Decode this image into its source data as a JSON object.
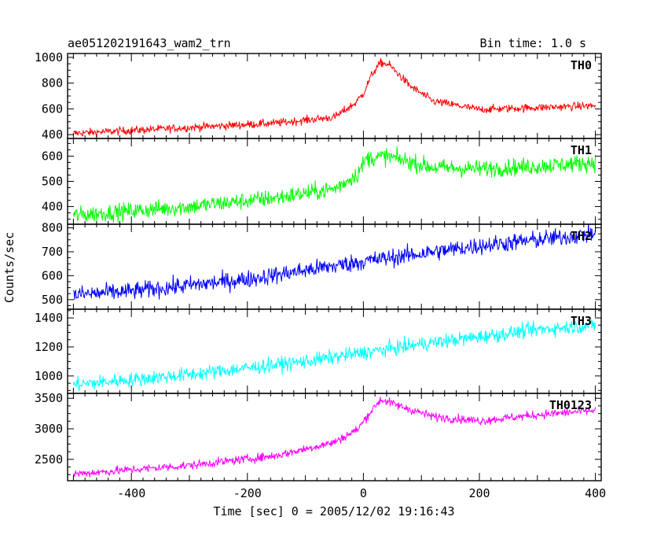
{
  "header": {
    "title": "ae051202191643_wam2_trn",
    "bin_time": "Bin time: 1.0 s"
  },
  "chart_data": {
    "type": "line",
    "title": "ae051202191643_wam2_trn",
    "xlabel": "Time [sec] 0 = 2005/12/02 19:16:43",
    "ylabel": "Counts/sec",
    "xlim": [
      -510,
      410
    ],
    "x_ticks": [
      -400,
      -200,
      0,
      200,
      400
    ],
    "grid": false,
    "panels": [
      {
        "name": "TH0",
        "color": "#ff0000",
        "ylim": [
          370,
          1030
        ],
        "y_ticks": [
          400,
          600,
          800,
          1000
        ],
        "keypoints": [
          [
            -500,
            410
          ],
          [
            -300,
            455
          ],
          [
            -150,
            490
          ],
          [
            -50,
            535
          ],
          [
            -15,
            640
          ],
          [
            0,
            720
          ],
          [
            15,
            870
          ],
          [
            30,
            960
          ],
          [
            45,
            940
          ],
          [
            80,
            780
          ],
          [
            120,
            660
          ],
          [
            200,
            595
          ],
          [
            300,
            610
          ],
          [
            400,
            625
          ]
        ],
        "noise": 22
      },
      {
        "name": "TH1",
        "color": "#00ff00",
        "ylim": [
          330,
          670
        ],
        "y_ticks": [
          400,
          500,
          600
        ],
        "keypoints": [
          [
            -500,
            365
          ],
          [
            -300,
            400
          ],
          [
            -150,
            435
          ],
          [
            -50,
            470
          ],
          [
            -10,
            530
          ],
          [
            5,
            590
          ],
          [
            40,
            600
          ],
          [
            120,
            555
          ],
          [
            200,
            550
          ],
          [
            300,
            560
          ],
          [
            400,
            575
          ]
        ],
        "noise": 24
      },
      {
        "name": "TH2",
        "color": "#0000ff",
        "ylim": [
          460,
          815
        ],
        "y_ticks": [
          500,
          600,
          700,
          800
        ],
        "keypoints": [
          [
            -500,
            520
          ],
          [
            -400,
            535
          ],
          [
            -200,
            585
          ],
          [
            0,
            660
          ],
          [
            200,
            725
          ],
          [
            400,
            775
          ]
        ],
        "noise": 26
      },
      {
        "name": "TH3",
        "color": "#00ffff",
        "ylim": [
          880,
          1460
        ],
        "y_ticks": [
          1000,
          1200,
          1400
        ],
        "keypoints": [
          [
            -500,
            940
          ],
          [
            -300,
            1010
          ],
          [
            -100,
            1100
          ],
          [
            100,
            1220
          ],
          [
            300,
            1320
          ],
          [
            400,
            1350
          ]
        ],
        "noise": 35
      },
      {
        "name": "TH0123",
        "color": "#ff00ff",
        "ylim": [
          2150,
          3580
        ],
        "y_ticks": [
          2500,
          3000,
          3500
        ],
        "keypoints": [
          [
            -500,
            2260
          ],
          [
            -300,
            2400
          ],
          [
            -150,
            2560
          ],
          [
            -50,
            2780
          ],
          [
            -10,
            2990
          ],
          [
            10,
            3250
          ],
          [
            30,
            3480
          ],
          [
            60,
            3380
          ],
          [
            120,
            3200
          ],
          [
            200,
            3130
          ],
          [
            300,
            3230
          ],
          [
            400,
            3300
          ]
        ],
        "noise": 50
      }
    ]
  }
}
